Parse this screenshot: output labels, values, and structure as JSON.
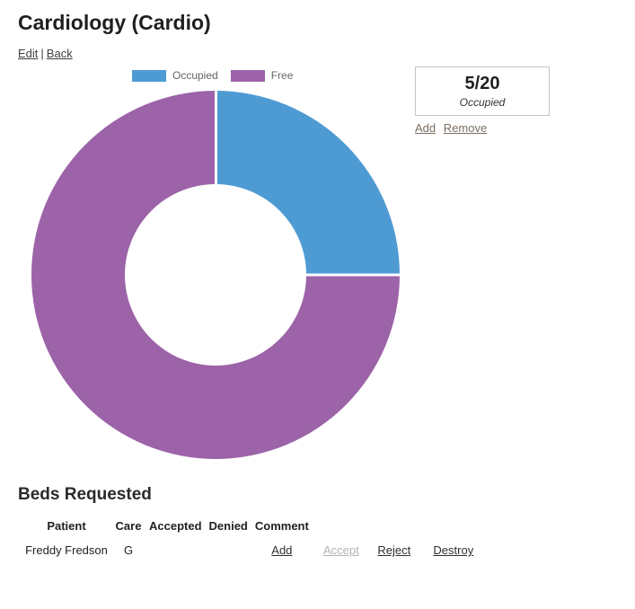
{
  "page": {
    "title": "Cardiology (Cardio)",
    "nav": {
      "edit": "Edit",
      "separator": "|",
      "back": "Back"
    }
  },
  "chart_data": {
    "type": "pie",
    "subtype": "doughnut",
    "labels": [
      "Occupied",
      "Free"
    ],
    "values": [
      5,
      15
    ],
    "total": 20,
    "colors": [
      "#4e9bd4",
      "#9c63a8"
    ],
    "legend_position": "top"
  },
  "occupancy": {
    "ratio": "5/20",
    "caption": "Occupied",
    "add_label": "Add",
    "remove_label": "Remove"
  },
  "beds_requested": {
    "heading": "Beds Requested",
    "columns": [
      "Patient",
      "Care",
      "Accepted",
      "Denied",
      "Comment"
    ],
    "rows": [
      {
        "patient": "Freddy Fredson",
        "care": "G",
        "accepted": "",
        "denied": "",
        "comment_action": "Add",
        "actions": {
          "accept": "Accept",
          "reject": "Reject",
          "destroy": "Destroy"
        }
      }
    ]
  }
}
